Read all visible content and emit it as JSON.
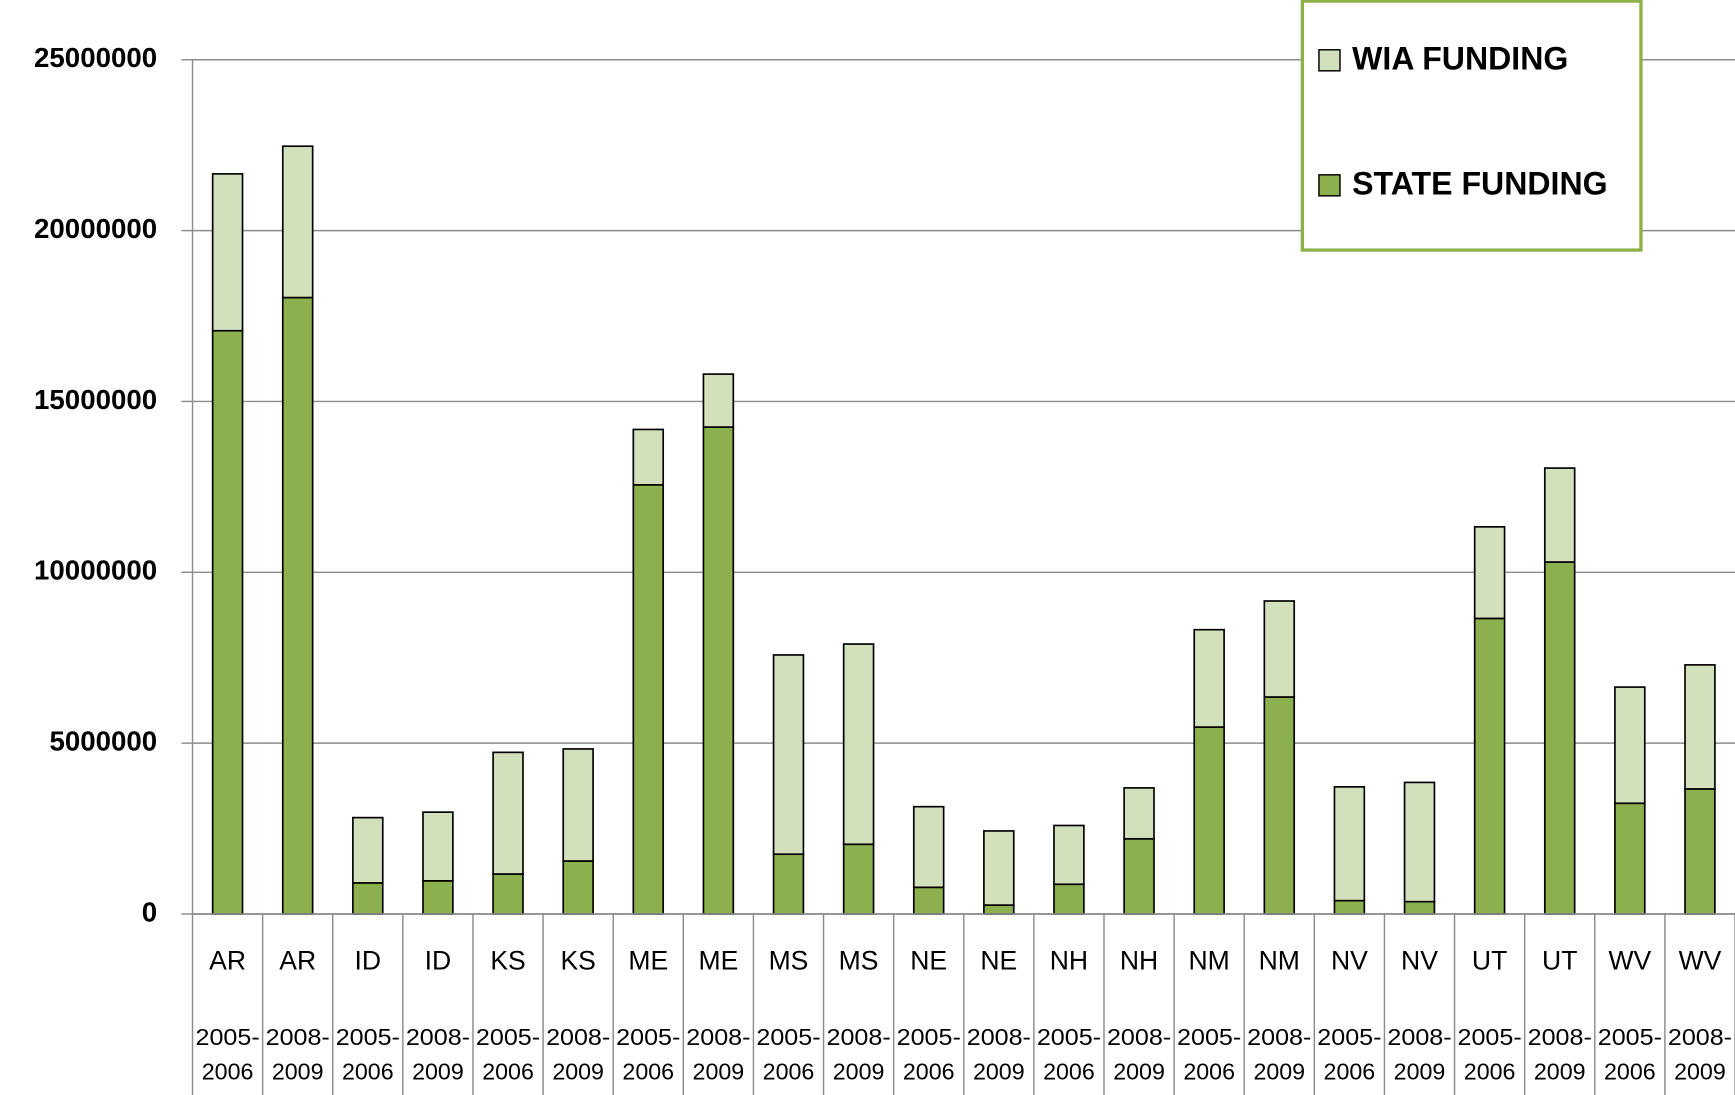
{
  "chart_data": {
    "type": "stacked_bar",
    "categories": [
      "AR",
      "AR",
      "ID",
      "ID",
      "KS",
      "KS",
      "ME",
      "ME",
      "MS",
      "MS",
      "NE",
      "NE",
      "NH",
      "NH",
      "NM",
      "NM",
      "NV",
      "NV",
      "UT",
      "UT",
      "WV",
      "WV"
    ],
    "periods": [
      [
        "2005-",
        "2006"
      ],
      [
        "2008-",
        "2009"
      ],
      [
        "2005-",
        "2006"
      ],
      [
        "2008-",
        "2009"
      ],
      [
        "2005-",
        "2006"
      ],
      [
        "2008-",
        "2009"
      ],
      [
        "2005-",
        "2006"
      ],
      [
        "2008-",
        "2009"
      ],
      [
        "2005-",
        "2006"
      ],
      [
        "2008-",
        "2009"
      ],
      [
        "2005-",
        "2006"
      ],
      [
        "2008-",
        "2009"
      ],
      [
        "2005-",
        "2006"
      ],
      [
        "2008-",
        "2009"
      ],
      [
        "2005-",
        "2006"
      ],
      [
        "2008-",
        "2009"
      ],
      [
        "2005-",
        "2006"
      ],
      [
        "2008-",
        "2009"
      ],
      [
        "2005-",
        "2006"
      ],
      [
        "2008-",
        "2009"
      ],
      [
        "2005-",
        "2006"
      ],
      [
        "2008-",
        "2009"
      ]
    ],
    "series": [
      {
        "name": "STATE FUNDING",
        "color": "#8db04f",
        "values": [
          17070000,
          18040000,
          910000,
          970000,
          1170000,
          1550000,
          12560000,
          14250000,
          1750000,
          2040000,
          780000,
          260000,
          870000,
          2200000,
          5470000,
          6350000,
          390000,
          360000,
          8650000,
          10300000,
          3240000,
          3660000
        ]
      },
      {
        "name": "WIA FUNDING",
        "color": "#d2e0bc",
        "values": [
          4590000,
          4430000,
          1910000,
          2010000,
          3560000,
          3280000,
          1620000,
          1550000,
          5830000,
          5860000,
          2360000,
          2170000,
          1720000,
          1490000,
          2850000,
          2810000,
          3330000,
          3490000,
          2680000,
          2750000,
          3400000,
          3630000
        ]
      }
    ],
    "ylim": [
      0,
      25000000
    ],
    "yticks": [
      0,
      5000000,
      10000000,
      15000000,
      20000000,
      25000000
    ],
    "grid": true,
    "legend": "top-right"
  }
}
